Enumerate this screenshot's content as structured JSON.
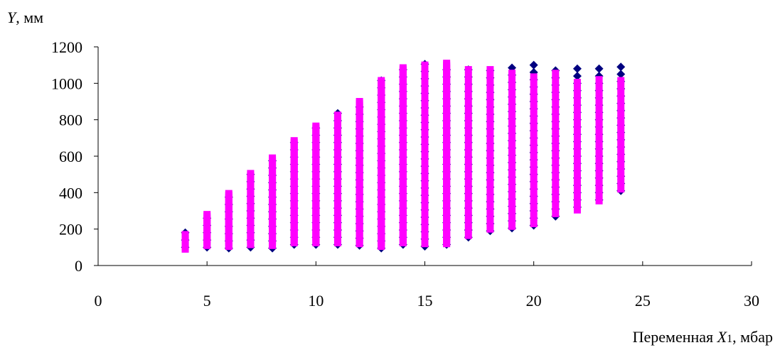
{
  "chart_data": {
    "type": "scatter",
    "title": "",
    "ylabel": {
      "var": "Y",
      "unit": ", мм"
    },
    "xlabel": {
      "prefix": "Переменная ",
      "var": "X",
      "sub": "1",
      "unit": ", мбар"
    },
    "xlim": [
      0,
      30
    ],
    "ylim": [
      0,
      1200
    ],
    "xticks": [
      0,
      5,
      10,
      15,
      20,
      25,
      30
    ],
    "yticks": [
      0,
      200,
      400,
      600,
      800,
      1000,
      1200
    ],
    "grid": false,
    "legend": "none",
    "series": [
      {
        "marker": "diamond",
        "color": "#000080",
        "step": 40,
        "columns": [
          {
            "x": 4,
            "ymin": 100,
            "ymax": 180
          },
          {
            "x": 5,
            "ymin": 100,
            "ymax": 280
          },
          {
            "x": 6,
            "ymin": 95,
            "ymax": 390
          },
          {
            "x": 7,
            "ymin": 100,
            "ymax": 510
          },
          {
            "x": 8,
            "ymin": 95,
            "ymax": 590
          },
          {
            "x": 9,
            "ymin": 115,
            "ymax": 690
          },
          {
            "x": 10,
            "ymin": 115,
            "ymax": 770
          },
          {
            "x": 11,
            "ymin": 115,
            "ymax": 835
          },
          {
            "x": 12,
            "ymin": 110,
            "ymax": 905
          },
          {
            "x": 13,
            "ymin": 95,
            "ymax": 1015
          },
          {
            "x": 14,
            "ymin": 115,
            "ymax": 1105
          },
          {
            "x": 15,
            "ymin": 105,
            "ymax": 1105
          },
          {
            "x": 16,
            "ymin": 115,
            "ymax": 1110
          },
          {
            "x": 17,
            "ymin": 155,
            "ymax": 1100
          },
          {
            "x": 18,
            "ymin": 190,
            "ymax": 1100
          },
          {
            "x": 19,
            "ymin": 205,
            "ymax": 1100
          },
          {
            "x": 20,
            "ymin": 220,
            "ymax": 1100
          },
          {
            "x": 21,
            "ymin": 270,
            "ymax": 1100
          },
          {
            "x": 22,
            "ymin": 320,
            "ymax": 1100
          },
          {
            "x": 23,
            "ymin": 360,
            "ymax": 1100
          },
          {
            "x": 24,
            "ymin": 410,
            "ymax": 1100
          }
        ]
      },
      {
        "marker": "square",
        "color": "#FF00FF",
        "columns": [
          {
            "x": 4,
            "ymin": 90,
            "ymax": 175,
            "step": 10
          },
          {
            "x": 5,
            "ymin": 110,
            "ymax": 285,
            "step": 10
          },
          {
            "x": 6,
            "ymin": 105,
            "ymax": 395,
            "step": 10
          },
          {
            "x": 7,
            "ymin": 115,
            "ymax": 510,
            "step": 10
          },
          {
            "x": 8,
            "ymin": 110,
            "ymax": 590,
            "step": 10
          },
          {
            "x": 9,
            "ymin": 125,
            "ymax": 690,
            "step": 10
          },
          {
            "x": 10,
            "ymin": 125,
            "ymax": 765,
            "step": 10
          },
          {
            "x": 11,
            "ymin": 125,
            "ymax": 830,
            "step": 10
          },
          {
            "x": 12,
            "ymin": 120,
            "ymax": 905,
            "step": 10
          },
          {
            "x": 13,
            "ymin": 105,
            "ymax": 1015,
            "step": 10
          },
          {
            "x": 14,
            "ymin": 125,
            "ymax": 1085,
            "step": 10
          },
          {
            "x": 15,
            "ymin": 120,
            "ymax": 1105,
            "step": 10
          },
          {
            "x": 16,
            "ymin": 120,
            "ymax": 1110,
            "step": 10
          },
          {
            "x": 17,
            "ymin": 165,
            "ymax": 1100,
            "step": 35
          },
          {
            "x": 18,
            "ymin": 200,
            "ymax": 1085,
            "step": 35
          },
          {
            "x": 19,
            "ymin": 215,
            "ymax": 1070,
            "step": 35
          },
          {
            "x": 20,
            "ymin": 230,
            "ymax": 1060,
            "step": 35
          },
          {
            "x": 21,
            "ymin": 285,
            "ymax": 1055,
            "step": 35
          },
          {
            "x": 22,
            "ymin": 305,
            "ymax": 1035,
            "step": 35
          },
          {
            "x": 23,
            "ymin": 355,
            "ymax": 1025,
            "step": 35
          },
          {
            "x": 24,
            "ymin": 420,
            "ymax": 1035,
            "step": 35
          }
        ]
      }
    ]
  }
}
